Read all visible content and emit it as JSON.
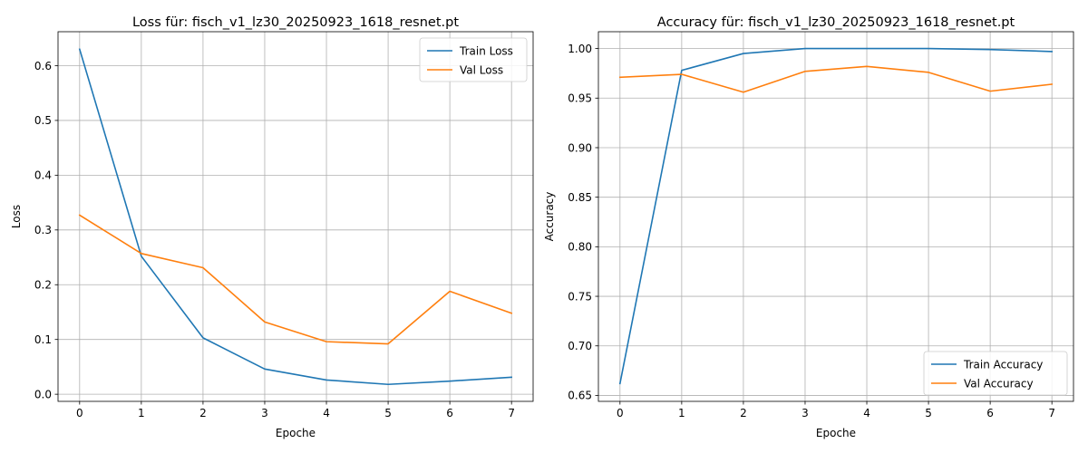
{
  "chart_data": [
    {
      "type": "line",
      "title": "Loss für: fisch_v1_lz30_20250923_1618_resnet.pt",
      "xlabel": "Epoche",
      "ylabel": "Loss",
      "x": [
        0,
        1,
        2,
        3,
        4,
        5,
        6,
        7
      ],
      "xlim": [
        -0.35,
        7.35
      ],
      "ylim": [
        -0.013,
        0.662
      ],
      "xticks": [
        "0",
        "1",
        "2",
        "3",
        "4",
        "5",
        "6",
        "7"
      ],
      "yticks": [
        {
          "value": 0.0,
          "label": "0.0"
        },
        {
          "value": 0.1,
          "label": "0.1"
        },
        {
          "value": 0.2,
          "label": "0.2"
        },
        {
          "value": 0.3,
          "label": "0.3"
        },
        {
          "value": 0.4,
          "label": "0.4"
        },
        {
          "value": 0.5,
          "label": "0.5"
        },
        {
          "value": 0.6,
          "label": "0.6"
        }
      ],
      "grid": true,
      "legend_position": "top-right",
      "series": [
        {
          "name": "Train Loss",
          "color": "#1f77b4",
          "values": [
            0.63,
            0.252,
            0.103,
            0.046,
            0.026,
            0.018,
            0.024,
            0.031
          ]
        },
        {
          "name": "Val Loss",
          "color": "#ff7f0e",
          "values": [
            0.327,
            0.257,
            0.231,
            0.132,
            0.096,
            0.092,
            0.188,
            0.148
          ]
        }
      ]
    },
    {
      "type": "line",
      "title": "Accuracy für: fisch_v1_lz30_20250923_1618_resnet.pt",
      "xlabel": "Epoche",
      "ylabel": "Accuracy",
      "x": [
        0,
        1,
        2,
        3,
        4,
        5,
        6,
        7
      ],
      "xlim": [
        -0.35,
        7.35
      ],
      "ylim": [
        0.644,
        1.017
      ],
      "xticks": [
        "0",
        "1",
        "2",
        "3",
        "4",
        "5",
        "6",
        "7"
      ],
      "yticks": [
        {
          "value": 0.65,
          "label": "0.65"
        },
        {
          "value": 0.7,
          "label": "0.70"
        },
        {
          "value": 0.75,
          "label": "0.75"
        },
        {
          "value": 0.8,
          "label": "0.80"
        },
        {
          "value": 0.85,
          "label": "0.85"
        },
        {
          "value": 0.9,
          "label": "0.90"
        },
        {
          "value": 0.95,
          "label": "0.95"
        },
        {
          "value": 1.0,
          "label": "1.00"
        }
      ],
      "grid": true,
      "legend_position": "bottom-right",
      "series": [
        {
          "name": "Train Accuracy",
          "color": "#1f77b4",
          "values": [
            0.662,
            0.978,
            0.995,
            1.0,
            1.0,
            1.0,
            0.999,
            0.997
          ]
        },
        {
          "name": "Val Accuracy",
          "color": "#ff7f0e",
          "values": [
            0.971,
            0.974,
            0.956,
            0.977,
            0.982,
            0.976,
            0.957,
            0.964
          ]
        }
      ]
    }
  ]
}
